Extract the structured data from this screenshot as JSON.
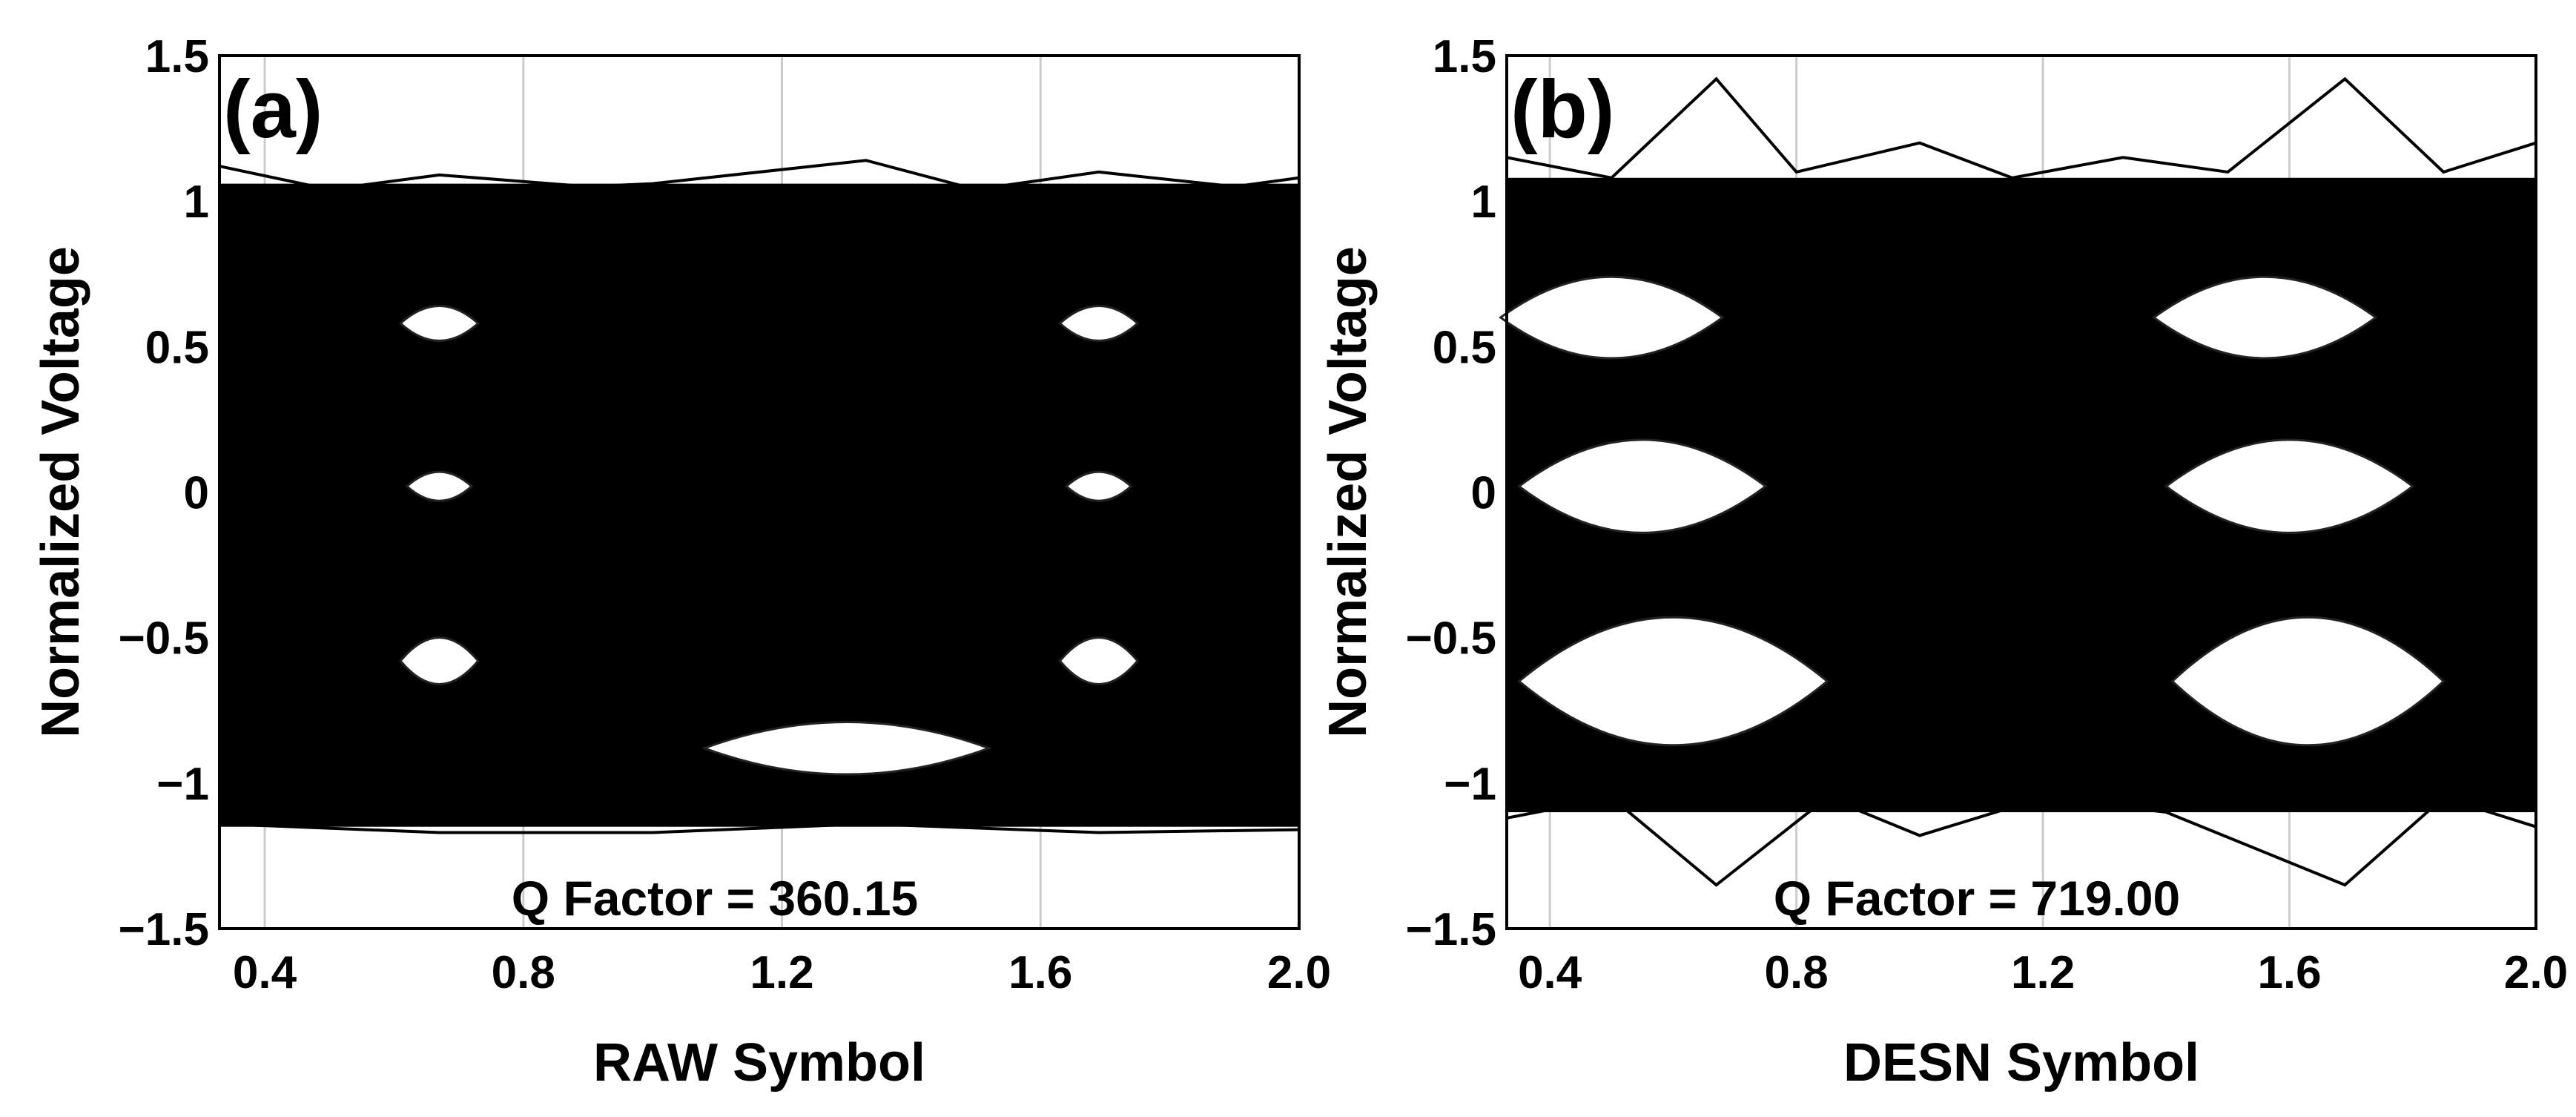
{
  "chart_data": [
    {
      "type": "line",
      "panel_label": "(a)",
      "title": "",
      "xlabel": "RAW Symbol",
      "ylabel": "Normalized Voltage",
      "xlim": [
        0.33,
        2.0
      ],
      "ylim": [
        -1.5,
        1.5
      ],
      "x_ticks": [
        "0.4",
        "0.8",
        "1.2",
        "1.6",
        "2.0"
      ],
      "y_ticks": [
        "1.5",
        "1",
        "0.5",
        "0",
        "−0.5",
        "−1",
        "−1.5"
      ],
      "grid": true,
      "annotation": "Q Factor = 360.15",
      "eye_openings": [
        {
          "x_center": 0.67,
          "y_center": 0.58
        },
        {
          "x_center": 0.67,
          "y_center": 0.02
        },
        {
          "x_center": 0.67,
          "y_center": -0.58
        },
        {
          "x_center": 1.69,
          "y_center": 0.58
        },
        {
          "x_center": 1.69,
          "y_center": 0.02
        },
        {
          "x_center": 1.69,
          "y_center": -0.58
        },
        {
          "x_center": 1.3,
          "y_center": -0.88
        }
      ]
    },
    {
      "type": "line",
      "panel_label": "(b)",
      "title": "",
      "xlabel": "DESN Symbol",
      "ylabel": "Normalized Voltage",
      "xlim": [
        0.33,
        2.0
      ],
      "ylim": [
        -1.5,
        1.5
      ],
      "x_ticks": [
        "0.4",
        "0.8",
        "1.2",
        "1.6",
        "2.0"
      ],
      "y_ticks": [
        "1.5",
        "1",
        "0.5",
        "0",
        "−0.5",
        "−1",
        "−1.5"
      ],
      "grid": true,
      "annotation": "Q Factor = 719.00",
      "eye_openings": [
        {
          "x_center": 0.5,
          "y_center": 0.6
        },
        {
          "x_center": 0.55,
          "y_center": 0.02
        },
        {
          "x_center": 0.6,
          "y_center": -0.65
        },
        {
          "x_center": 1.56,
          "y_center": 0.6
        },
        {
          "x_center": 1.6,
          "y_center": 0.02
        },
        {
          "x_center": 1.63,
          "y_center": -0.65
        }
      ]
    }
  ]
}
